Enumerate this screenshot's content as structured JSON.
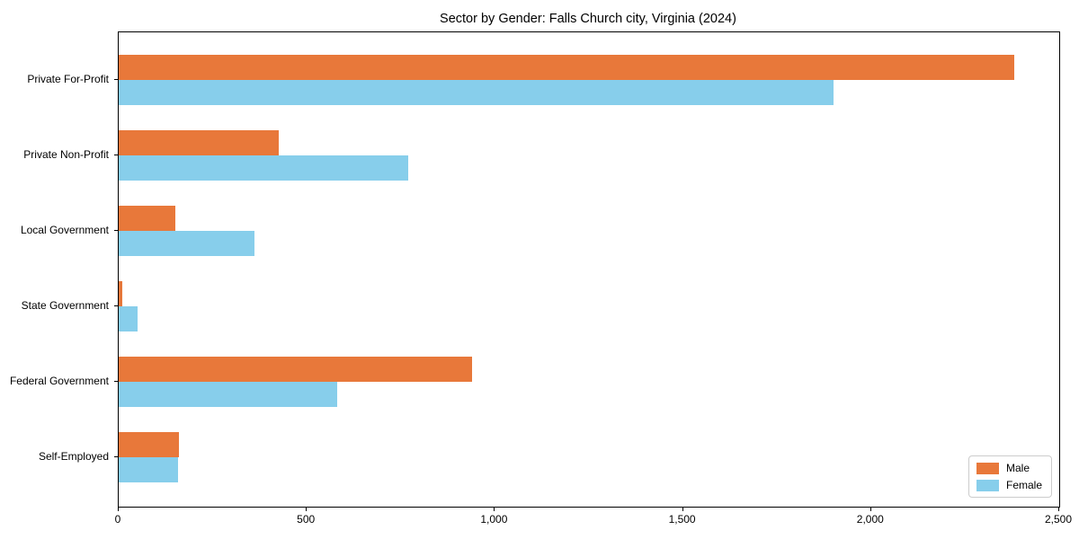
{
  "chart_data": {
    "type": "bar",
    "orientation": "horizontal",
    "title": "Sector by Gender: Falls Church city, Virginia (2024)",
    "categories": [
      "Private For-Profit",
      "Private Non-Profit",
      "Local Government",
      "State Government",
      "Federal Government",
      "Self-Employed"
    ],
    "series": [
      {
        "name": "Male",
        "color": "#E8783A",
        "values": [
          2380,
          425,
          150,
          10,
          940,
          160
        ]
      },
      {
        "name": "Female",
        "color": "#87CEEB",
        "values": [
          1900,
          770,
          360,
          50,
          580,
          158
        ]
      }
    ],
    "xlabel": "",
    "ylabel": "",
    "xlim": [
      0,
      2500
    ],
    "xticks": [
      0,
      500,
      1000,
      1500,
      2000,
      2500
    ],
    "xtick_labels": [
      "0",
      "500",
      "1,000",
      "1,500",
      "2,000",
      "2,500"
    ],
    "legend_position": "lower right",
    "grid": false,
    "background_color": "#ffffff",
    "spine_color": "#000000"
  }
}
